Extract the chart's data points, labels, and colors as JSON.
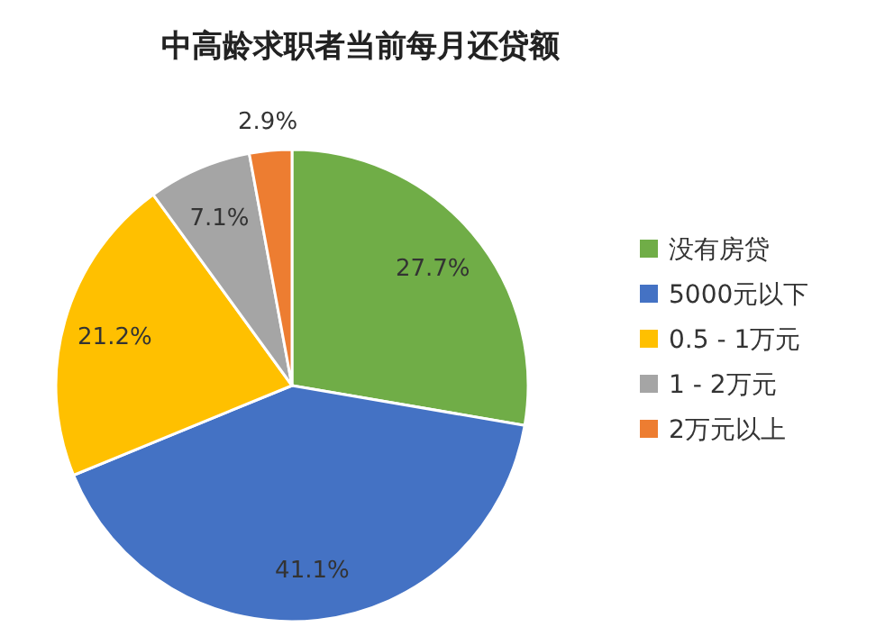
{
  "chart_data": {
    "type": "pie",
    "title": "中高龄求职者当前每月还贷额",
    "categories": [
      "没有房贷",
      "5000元以下",
      "0.5 - 1万元",
      "1 - 2万元",
      "2万元以上"
    ],
    "values": [
      27.7,
      41.1,
      21.2,
      7.1,
      2.9
    ],
    "colors": [
      "#70ad47",
      "#4472c4",
      "#ffc000",
      "#a5a5a5",
      "#ed7d31"
    ],
    "value_labels": [
      "27.7%",
      "41.1%",
      "21.2%",
      "7.1%",
      "2.9%"
    ],
    "legend": "right"
  }
}
